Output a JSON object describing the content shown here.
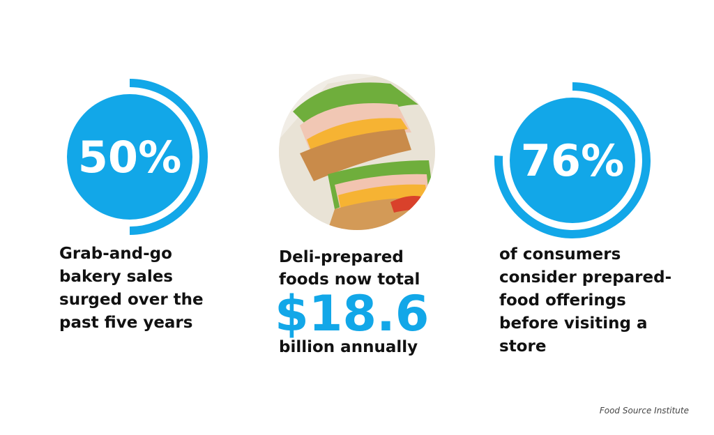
{
  "stats": [
    {
      "value": 50,
      "label": "50%",
      "caption": [
        "Grab-and-go",
        "bakery sales",
        "surged over the",
        "past five years"
      ]
    },
    {
      "value": 76,
      "label": "76%",
      "caption": [
        "of consumers",
        "consider prepared-",
        "food offerings",
        "before visiting a",
        "store"
      ]
    }
  ],
  "feature": {
    "caption_top": [
      "Deli-prepared",
      "foods now total"
    ],
    "amount": "$18.6",
    "caption_bottom": "billion annually"
  },
  "source": "Food Source Institute"
}
